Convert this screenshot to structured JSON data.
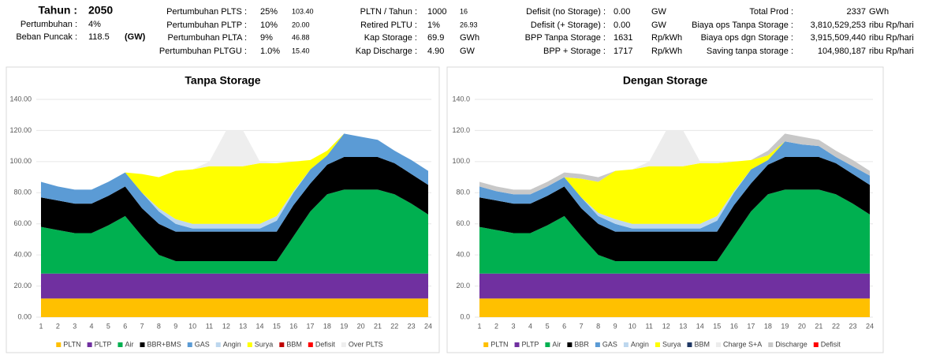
{
  "header": {
    "columns": [
      [
        {
          "label": "Tahun :",
          "value": "2050"
        },
        {
          "label": "Pertumbuhan :",
          "value": "4%"
        },
        {
          "label": "Beban Puncak :",
          "value": "118.5",
          "extra": "(GW)"
        }
      ],
      [
        {
          "label": "Pertumbuhan PLTS :",
          "value": "25%",
          "extra": "103.40"
        },
        {
          "label": "Pertumbuhan PLTP :",
          "value": "10%",
          "extra": "20.00"
        },
        {
          "label": "Pertumbuhan PLTA :",
          "value": "9%",
          "extra": "46.88"
        },
        {
          "label": "Pertumbuhan PLTGU :",
          "value": "1.0%",
          "extra": "15.40"
        }
      ],
      [
        {
          "label": "PLTN / Tahun :",
          "value": "1000",
          "extra": "16"
        },
        {
          "label": "Retired PLTU :",
          "value": "1%",
          "extra": "26.93"
        },
        {
          "label": "Kap Storage :",
          "value": "69.9",
          "extra": "GWh"
        },
        {
          "label": "Kap Discharge :",
          "value": "4.90",
          "extra": "GW"
        }
      ],
      [
        {
          "label": "Defisit (no Storage) :",
          "value": "0.00",
          "extra": "GW"
        },
        {
          "label": "Defisit (+ Storage) :",
          "value": "0.00",
          "extra": "GW"
        },
        {
          "label": "BPP Tanpa Storage :",
          "value": "1631",
          "extra": "Rp/kWh"
        },
        {
          "label": "BPP + Storage :",
          "value": "1717",
          "extra": "Rp/kWh"
        }
      ],
      [
        {
          "label": "Total Prod :",
          "value": "2337",
          "extra": "GWh"
        },
        {
          "label": "Biaya ops Tanpa Storage :",
          "value": "3,810,529,253",
          "extra": "ribu Rp/hari"
        },
        {
          "label": "Biaya ops dgn Storage :",
          "value": "3,915,509,440",
          "extra": "ribu Rp/hari"
        },
        {
          "label": "Saving tanpa storage :",
          "value": "104,980,187",
          "extra": "ribu Rp/hari"
        }
      ]
    ]
  },
  "chart_data": [
    {
      "type": "stacked_area",
      "title": "Tanpa Storage",
      "categories": [
        "1",
        "2",
        "3",
        "4",
        "5",
        "6",
        "7",
        "8",
        "9",
        "10",
        "11",
        "12",
        "13",
        "14",
        "15",
        "16",
        "17",
        "18",
        "19",
        "20",
        "21",
        "22",
        "23",
        "24"
      ],
      "ylim": [
        0,
        140
      ],
      "yticks": [
        {
          "value": 0,
          "label": "0.00"
        },
        {
          "value": 20,
          "label": "20.00"
        },
        {
          "value": 40,
          "label": "40.00"
        },
        {
          "value": 60,
          "label": "60.00"
        },
        {
          "value": 80,
          "label": "80.00"
        },
        {
          "value": 100,
          "label": "100.00"
        },
        {
          "value": 120,
          "label": "120.00"
        },
        {
          "value": 140,
          "label": "140.00"
        }
      ],
      "grid": true,
      "series": [
        {
          "name": "PLTN",
          "color": "#ffc000",
          "values": [
            12,
            12,
            12,
            12,
            12,
            12,
            12,
            12,
            12,
            12,
            12,
            12,
            12,
            12,
            12,
            12,
            12,
            12,
            12,
            12,
            12,
            12,
            12,
            12
          ]
        },
        {
          "name": "PLTP",
          "color": "#7030a0",
          "values": [
            16,
            16,
            16,
            16,
            16,
            16,
            16,
            16,
            16,
            16,
            16,
            16,
            16,
            16,
            16,
            16,
            16,
            16,
            16,
            16,
            16,
            16,
            16,
            16
          ]
        },
        {
          "name": "Air",
          "color": "#00b050",
          "values": [
            30,
            28,
            26,
            26,
            31,
            37,
            24,
            12,
            8,
            8,
            8,
            8,
            8,
            8,
            8,
            24,
            40,
            51,
            54,
            54,
            54,
            51,
            45,
            38
          ]
        },
        {
          "name": "BBR+BMS",
          "color": "#000000",
          "values": [
            19,
            19,
            19,
            19,
            19,
            19,
            18,
            20,
            19,
            19,
            19,
            19,
            19,
            19,
            19,
            20,
            18,
            19,
            21,
            21,
            21,
            20,
            19,
            19
          ]
        },
        {
          "name": "GAS",
          "color": "#5b9bd5",
          "values": [
            10,
            9,
            9,
            9,
            9,
            9,
            10,
            8,
            5,
            2,
            2,
            2,
            2,
            2,
            7,
            8,
            9,
            6,
            15,
            13,
            11,
            8,
            9,
            9
          ]
        },
        {
          "name": "Angin",
          "color": "#bdd7ee",
          "values": [
            0,
            0,
            0,
            0,
            0,
            0,
            0,
            2,
            3,
            3,
            3,
            3,
            3,
            3,
            3,
            1,
            0,
            0,
            0,
            0,
            0,
            0,
            0,
            0
          ]
        },
        {
          "name": "Surya",
          "color": "#ffff00",
          "values": [
            0,
            0,
            0,
            0,
            0,
            0,
            12,
            20,
            31,
            35,
            37,
            37,
            37,
            39,
            34,
            19,
            6,
            3,
            0,
            0,
            0,
            0,
            0,
            0
          ]
        },
        {
          "name": "BBM",
          "color": "#c00000",
          "values": [
            0,
            0,
            0,
            0,
            0,
            0,
            0,
            0,
            0,
            0,
            0,
            0,
            0,
            0,
            0,
            0,
            0,
            0,
            0,
            0,
            0,
            0,
            0,
            0
          ]
        },
        {
          "name": "Defisit",
          "color": "#ff0000",
          "values": [
            0,
            0,
            0,
            0,
            0,
            0,
            0,
            0,
            0,
            0,
            0,
            0,
            0,
            0,
            0,
            0,
            0,
            0,
            0,
            0,
            0,
            0,
            0,
            0
          ]
        },
        {
          "name": "Over PLTS",
          "color": "#eeeeee",
          "values": [
            0,
            0,
            0,
            0,
            0,
            0,
            0,
            0,
            0,
            0,
            3,
            23,
            23,
            1,
            0,
            0,
            0,
            0,
            0,
            0,
            0,
            0,
            0,
            0
          ]
        }
      ]
    },
    {
      "type": "stacked_area",
      "title": "Dengan Storage",
      "categories": [
        "1",
        "2",
        "3",
        "4",
        "5",
        "6",
        "7",
        "8",
        "9",
        "10",
        "11",
        "12",
        "13",
        "14",
        "15",
        "16",
        "17",
        "18",
        "19",
        "20",
        "21",
        "22",
        "23",
        "24"
      ],
      "ylim": [
        0,
        140
      ],
      "yticks": [
        {
          "value": 0,
          "label": "0.0"
        },
        {
          "value": 20,
          "label": "20.0"
        },
        {
          "value": 40,
          "label": "40.0"
        },
        {
          "value": 60,
          "label": "60.0"
        },
        {
          "value": 80,
          "label": "80.0"
        },
        {
          "value": 100,
          "label": "100.0"
        },
        {
          "value": 120,
          "label": "120.0"
        },
        {
          "value": 140,
          "label": "140.0"
        }
      ],
      "grid": true,
      "series": [
        {
          "name": "PLTN",
          "color": "#ffc000",
          "values": [
            12,
            12,
            12,
            12,
            12,
            12,
            12,
            12,
            12,
            12,
            12,
            12,
            12,
            12,
            12,
            12,
            12,
            12,
            12,
            12,
            12,
            12,
            12,
            12
          ]
        },
        {
          "name": "PLTP",
          "color": "#7030a0",
          "values": [
            16,
            16,
            16,
            16,
            16,
            16,
            16,
            16,
            16,
            16,
            16,
            16,
            16,
            16,
            16,
            16,
            16,
            16,
            16,
            16,
            16,
            16,
            16,
            16
          ]
        },
        {
          "name": "Air",
          "color": "#00b050",
          "values": [
            30,
            28,
            26,
            26,
            31,
            37,
            24,
            12,
            8,
            8,
            8,
            8,
            8,
            8,
            8,
            24,
            40,
            51,
            54,
            54,
            54,
            51,
            45,
            38
          ]
        },
        {
          "name": "BBR",
          "color": "#000000",
          "values": [
            19,
            19,
            19,
            19,
            19,
            19,
            18,
            20,
            19,
            19,
            19,
            19,
            19,
            19,
            19,
            20,
            18,
            19,
            21,
            21,
            21,
            20,
            19,
            19
          ]
        },
        {
          "name": "GAS",
          "color": "#5b9bd5",
          "values": [
            7,
            6,
            6,
            6,
            6,
            6,
            7,
            5,
            5,
            2,
            2,
            2,
            2,
            2,
            7,
            8,
            9,
            3,
            10,
            8,
            7,
            4,
            5,
            6
          ]
        },
        {
          "name": "Angin",
          "color": "#bdd7ee",
          "values": [
            0,
            0,
            0,
            0,
            0,
            0,
            0,
            2,
            3,
            3,
            3,
            3,
            3,
            3,
            3,
            1,
            0,
            0,
            0,
            0,
            0,
            0,
            0,
            0
          ]
        },
        {
          "name": "Surya",
          "color": "#ffff00",
          "values": [
            0,
            0,
            0,
            0,
            0,
            0,
            12,
            20,
            31,
            35,
            37,
            37,
            37,
            39,
            34,
            19,
            6,
            3,
            0,
            0,
            0,
            0,
            0,
            0
          ]
        },
        {
          "name": "BBM",
          "color": "#1f3864",
          "values": [
            0,
            0,
            0,
            0,
            0,
            0,
            0,
            0,
            0,
            0,
            0,
            0,
            0,
            0,
            0,
            0,
            0,
            0,
            0,
            0,
            0,
            0,
            0,
            0
          ]
        },
        {
          "name": "Charge S+A",
          "color": "#ececec",
          "values": [
            0,
            0,
            0,
            0,
            0,
            0,
            0,
            0,
            0,
            0,
            3,
            23,
            23,
            1,
            1,
            0,
            0,
            0,
            0,
            0,
            0,
            0,
            0,
            0
          ]
        },
        {
          "name": "Discharge",
          "color": "#c8c8c8",
          "values": [
            3,
            3,
            3,
            3,
            3,
            3,
            3,
            3,
            0,
            0,
            0,
            0,
            0,
            0,
            0,
            0,
            0,
            3,
            5,
            5,
            4,
            4,
            4,
            3
          ]
        },
        {
          "name": "Defisit",
          "color": "#ff0000",
          "values": [
            0,
            0,
            0,
            0,
            0,
            0,
            0,
            0,
            0,
            0,
            0,
            0,
            0,
            0,
            0,
            0,
            0,
            0,
            0,
            0,
            0,
            0,
            0,
            0
          ]
        }
      ]
    }
  ]
}
